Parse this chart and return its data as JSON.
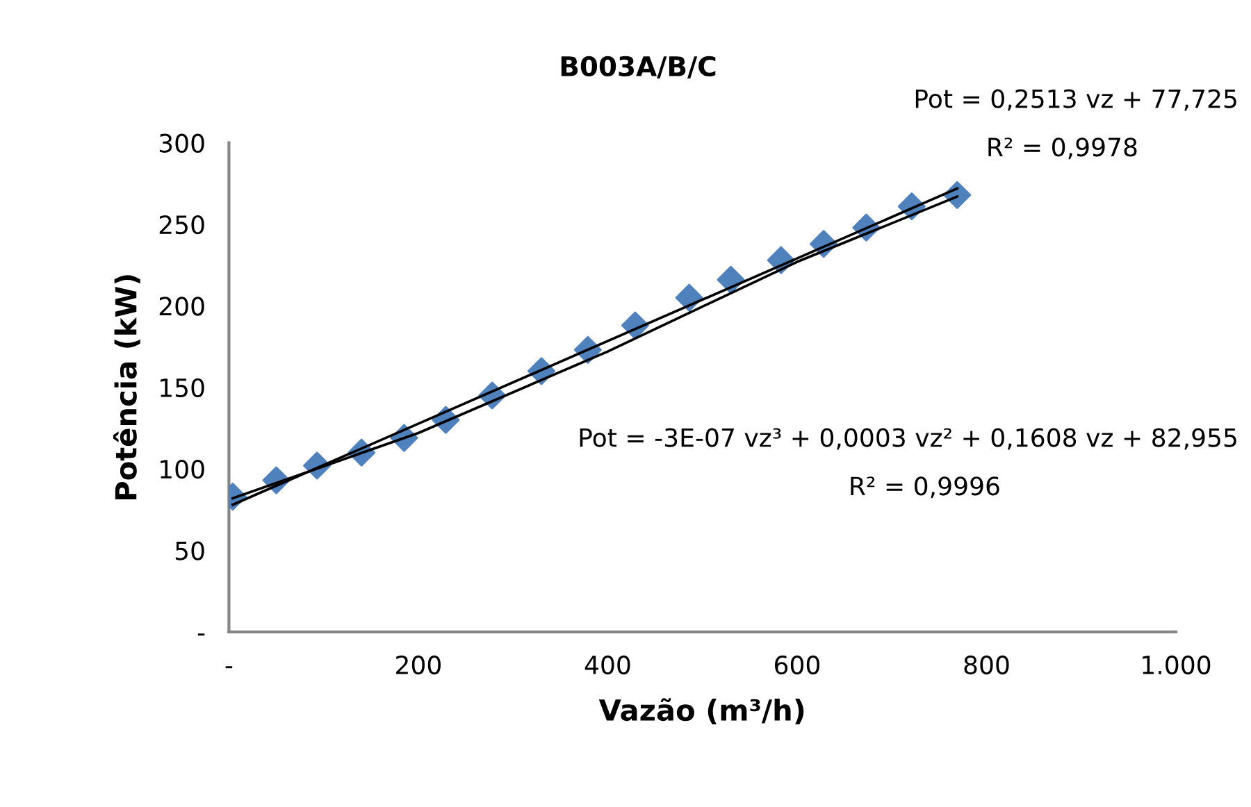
{
  "chart_data": {
    "type": "scatter",
    "title": "B003A/B/C",
    "xlabel": "Vazão (m³/h)",
    "ylabel": "Potência (kW)",
    "xlim": [
      0,
      1000
    ],
    "ylim": [
      0,
      300
    ],
    "xticks": [
      {
        "value": 0,
        "label": "-"
      },
      200,
      400,
      600,
      800,
      {
        "value": 1000,
        "label": "1.000"
      }
    ],
    "yticks": [
      {
        "value": 0,
        "label": "-"
      },
      50,
      100,
      150,
      200,
      250,
      300
    ],
    "grid": false,
    "legend": false,
    "marker": "diamond",
    "series": [
      {
        "color": "#4f81bd",
        "x": [
          4,
          50,
          93,
          140,
          185,
          229,
          278,
          330,
          379,
          429,
          486,
          530,
          583,
          628,
          673,
          721,
          769
        ],
        "values": [
          83,
          93,
          102,
          110,
          119,
          130,
          145,
          160,
          173,
          188,
          205,
          216,
          228,
          238,
          248,
          261,
          268
        ]
      },
      {
        "type": "line",
        "color": "#000000",
        "line_style": "solid",
        "marker": "none",
        "x": [
          4,
          769
        ],
        "values": [
          78,
          272
        ]
      },
      {
        "type": "line",
        "color": "#000000",
        "line_style": "solid",
        "marker": "none",
        "x": [
          4,
          200,
          400,
          600,
          769
        ],
        "values": [
          82,
          122,
          172,
          227,
          267
        ]
      }
    ],
    "annotations": [
      "Pot = 0,2513 vz + 77,725",
      "R² = 0,9978",
      "Pot = -3E-07 vz³ + 0,0003 vz² + 0,1608 vz + 82,955",
      "R² = 0,9996"
    ]
  }
}
